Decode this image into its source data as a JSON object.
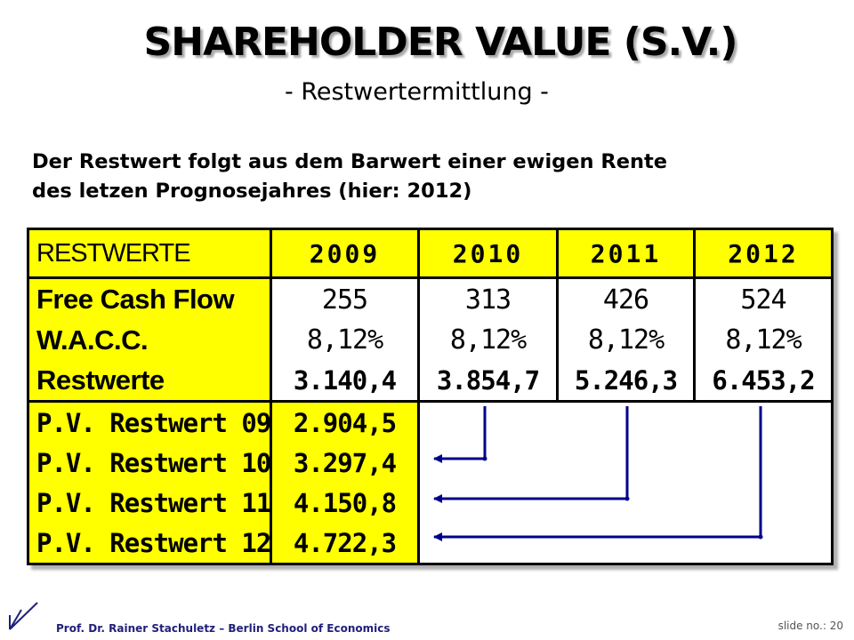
{
  "header": {
    "title": "SHAREHOLDER VALUE  (S.V.)",
    "subtitle": "- Restwertermittlung -"
  },
  "intro": {
    "line1": "Der Restwert folgt aus dem Barwert einer ewigen Rente",
    "line2": "des letzen Prognosejahres (hier: 2012)"
  },
  "table": {
    "corner": "RESTWERTE",
    "years": [
      "2009",
      "2010",
      "2011",
      "2012"
    ],
    "rows": {
      "fcf": {
        "label": "Free Cash Flow",
        "values": [
          "255",
          "313",
          "426",
          "524"
        ]
      },
      "wacc": {
        "label": "W.A.C.C.",
        "values": [
          "8,12%",
          "8,12%",
          "8,12%",
          "8,12%"
        ]
      },
      "restwerte": {
        "label": "Restwerte",
        "values": [
          "3.140,4",
          "3.854,7",
          "5.246,3",
          "6.453,2"
        ]
      }
    },
    "pv": [
      {
        "label": "P.V. Restwert 09",
        "value": "2.904,5"
      },
      {
        "label": "P.V. Restwert 10",
        "value": "3.297,4"
      },
      {
        "label": "P.V. Restwert 11",
        "value": "4.150,8"
      },
      {
        "label": "P.V. Restwert 12",
        "value": "4.722,3"
      }
    ]
  },
  "footer": {
    "author": "Prof. Dr. Rainer Stachuletz – Berlin School of Economics",
    "slide_label": "slide no.:",
    "slide_number": "20"
  },
  "colors": {
    "highlight": "#ffff00",
    "arrow": "#00008b",
    "footer_text": "#1f1f7a"
  },
  "icons": {
    "logo": "slash-logo-icon",
    "arrows": "arrow-left-icon"
  }
}
